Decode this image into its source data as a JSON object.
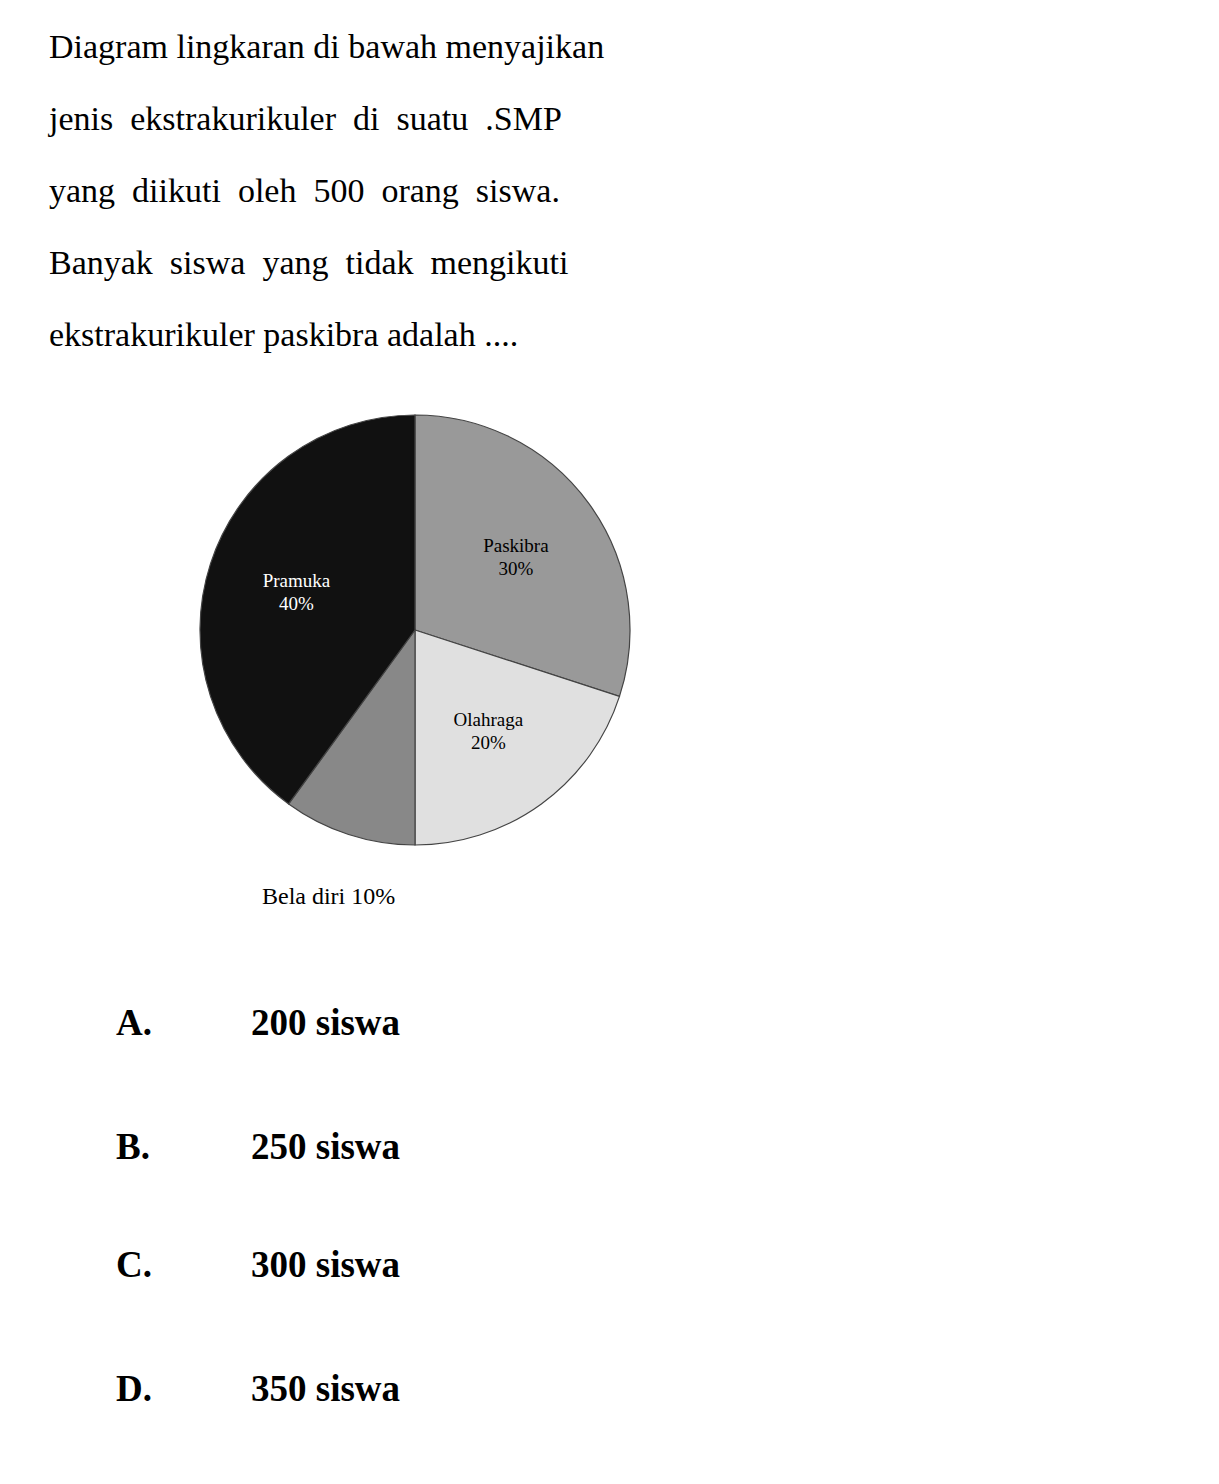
{
  "chart_data": {
    "type": "pie",
    "title": "Diagram lingkaran di bawah menyajikan\njenis  ekstrakurikuler  di  suatu  .SMP\nyang  diikuti  oleh  500  orang  siswa.\nBanyak  siswa  yang  tidak  mengikuti\nekstrakurikuler paskibra adalah ....",
    "categories": [
      "Paskibra\n30%",
      "Olahraga\n20%",
      "Bela diri 10%",
      "Pramuka\n40%"
    ],
    "values": [
      30,
      20,
      10,
      40
    ],
    "colors": [
      "#999999",
      "#e0e0e0",
      "#888888",
      "#111111"
    ],
    "annotations": [
      [
        "A.",
        "200 siswa"
      ],
      [
        "B.",
        "250 siswa"
      ],
      [
        "C.",
        "300 siswa"
      ],
      [
        "D.",
        "350 siswa"
      ]
    ]
  }
}
